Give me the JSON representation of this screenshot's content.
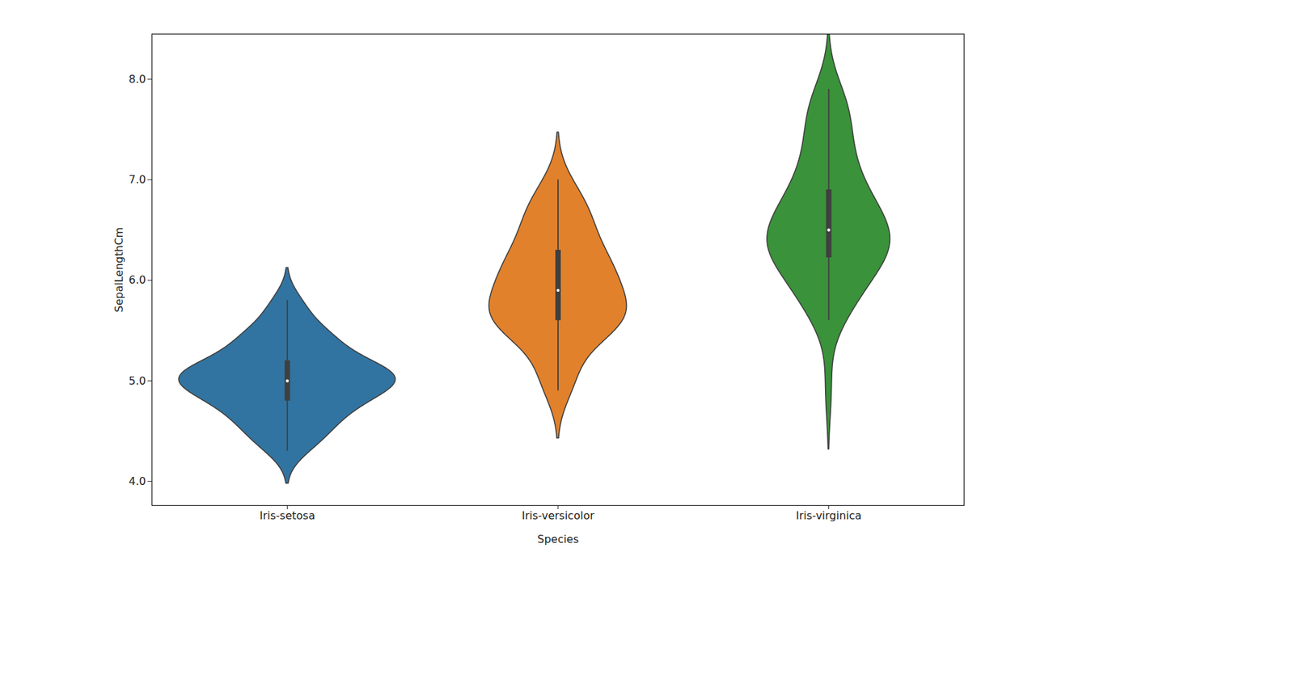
{
  "chart_data": {
    "type": "violin",
    "xlabel": "Species",
    "ylabel": "SepalLengthCm",
    "categories": [
      "Iris-setosa",
      "Iris-versicolor",
      "Iris-virginica"
    ],
    "colors": [
      "#3274a1",
      "#e1812c",
      "#3a923a"
    ],
    "values": [
      [
        5.1,
        4.9,
        4.7,
        4.6,
        5.0,
        5.4,
        4.6,
        5.0,
        4.4,
        4.9,
        5.4,
        4.8,
        4.8,
        4.3,
        5.8,
        5.7,
        5.4,
        5.1,
        5.7,
        5.1,
        5.4,
        5.1,
        4.6,
        5.1,
        4.8,
        5.0,
        5.0,
        5.2,
        5.2,
        4.7,
        4.8,
        5.4,
        5.2,
        5.5,
        4.9,
        5.0,
        5.5,
        4.9,
        4.4,
        5.1,
        5.0,
        4.5,
        4.4,
        5.0,
        5.1,
        4.8,
        5.1,
        4.6,
        5.3,
        5.0
      ],
      [
        7.0,
        6.4,
        6.9,
        5.5,
        6.5,
        5.7,
        6.3,
        4.9,
        6.6,
        5.2,
        5.0,
        5.9,
        6.0,
        6.1,
        5.6,
        6.7,
        5.6,
        5.8,
        6.2,
        5.6,
        5.9,
        6.1,
        6.3,
        6.1,
        6.4,
        6.6,
        6.8,
        6.7,
        6.0,
        5.7,
        5.5,
        5.5,
        5.8,
        6.0,
        5.4,
        6.0,
        6.7,
        6.3,
        5.6,
        5.5,
        5.5,
        6.1,
        5.8,
        5.0,
        5.6,
        5.7,
        5.7,
        6.2,
        5.1,
        5.7
      ],
      [
        6.3,
        5.8,
        7.1,
        6.3,
        6.5,
        7.6,
        4.9,
        7.3,
        6.7,
        7.2,
        6.5,
        6.4,
        6.8,
        5.7,
        5.8,
        6.4,
        6.5,
        7.7,
        7.7,
        6.0,
        6.9,
        5.6,
        7.7,
        6.3,
        6.7,
        7.2,
        6.2,
        6.1,
        6.4,
        7.2,
        7.4,
        7.9,
        6.4,
        6.3,
        6.1,
        7.7,
        6.3,
        6.4,
        6.0,
        6.9,
        6.7,
        6.9,
        5.8,
        6.8,
        6.7,
        6.7,
        6.3,
        6.5,
        6.2,
        5.9
      ]
    ],
    "ylim": [
      3.76,
      8.45
    ],
    "yticks": [
      4,
      5,
      6,
      7,
      8
    ]
  }
}
